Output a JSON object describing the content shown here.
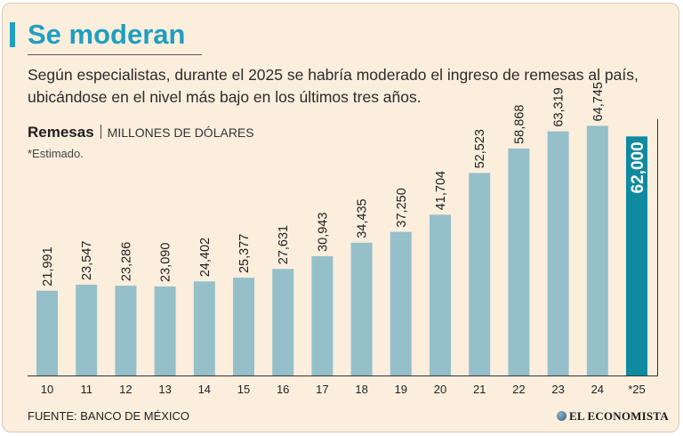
{
  "colors": {
    "background": "#fbeedd",
    "accent": "#1f9fc0",
    "bar": "#95c0ca",
    "bar_highlight": "#0f8aa0",
    "axis": "#333333"
  },
  "header": {
    "title": "Se moderan",
    "description": "Según especialistas, durante el 2025 se habría moderado el ingreso de remesas al país, ubicándose en el nivel más bajo en los últimos tres años."
  },
  "legend": {
    "series_name": "Remesas",
    "unit": "MILLONES DE DÓLARES",
    "note": "*Estimado."
  },
  "footer": {
    "source": "FUENTE: BANCO DE MÉXICO",
    "logo_text": "EL ECONOMISTA"
  },
  "chart_data": {
    "type": "bar",
    "title": "Remesas",
    "ylabel": "MILLONES DE DÓLARES",
    "xlabel": "",
    "categories": [
      "10",
      "11",
      "12",
      "13",
      "14",
      "15",
      "16",
      "17",
      "18",
      "19",
      "20",
      "21",
      "22",
      "23",
      "24",
      "*25"
    ],
    "values": [
      21991,
      23547,
      23286,
      23090,
      24402,
      25377,
      27631,
      30943,
      34435,
      37250,
      41704,
      52523,
      58868,
      63319,
      64745,
      62000
    ],
    "value_labels": [
      "21,991",
      "23,547",
      "23,286",
      "23,090",
      "24,402",
      "25,377",
      "27,631",
      "30,943",
      "34,435",
      "37,250",
      "41,704",
      "52,523",
      "58,868",
      "63,319",
      "64,745",
      "62,000"
    ],
    "highlight_index": 15,
    "ylim": [
      0,
      66000
    ],
    "grid": false,
    "legend": "none"
  }
}
